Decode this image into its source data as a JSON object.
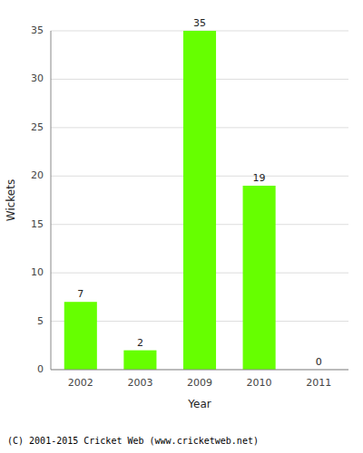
{
  "chart_data": {
    "type": "bar",
    "categories": [
      "2002",
      "2003",
      "2009",
      "2010",
      "2011"
    ],
    "values": [
      7,
      2,
      35,
      19,
      0
    ],
    "color": "#66ff00",
    "xlabel": "Year",
    "ylabel": "Wickets",
    "ylim": [
      0,
      35
    ],
    "yticks": [
      0,
      5,
      10,
      15,
      20,
      25,
      30,
      35
    ],
    "grid": true,
    "data_labels": true,
    "annotations": [
      "(C) 2001-2015 Cricket Web (www.cricketweb.net)"
    ]
  }
}
